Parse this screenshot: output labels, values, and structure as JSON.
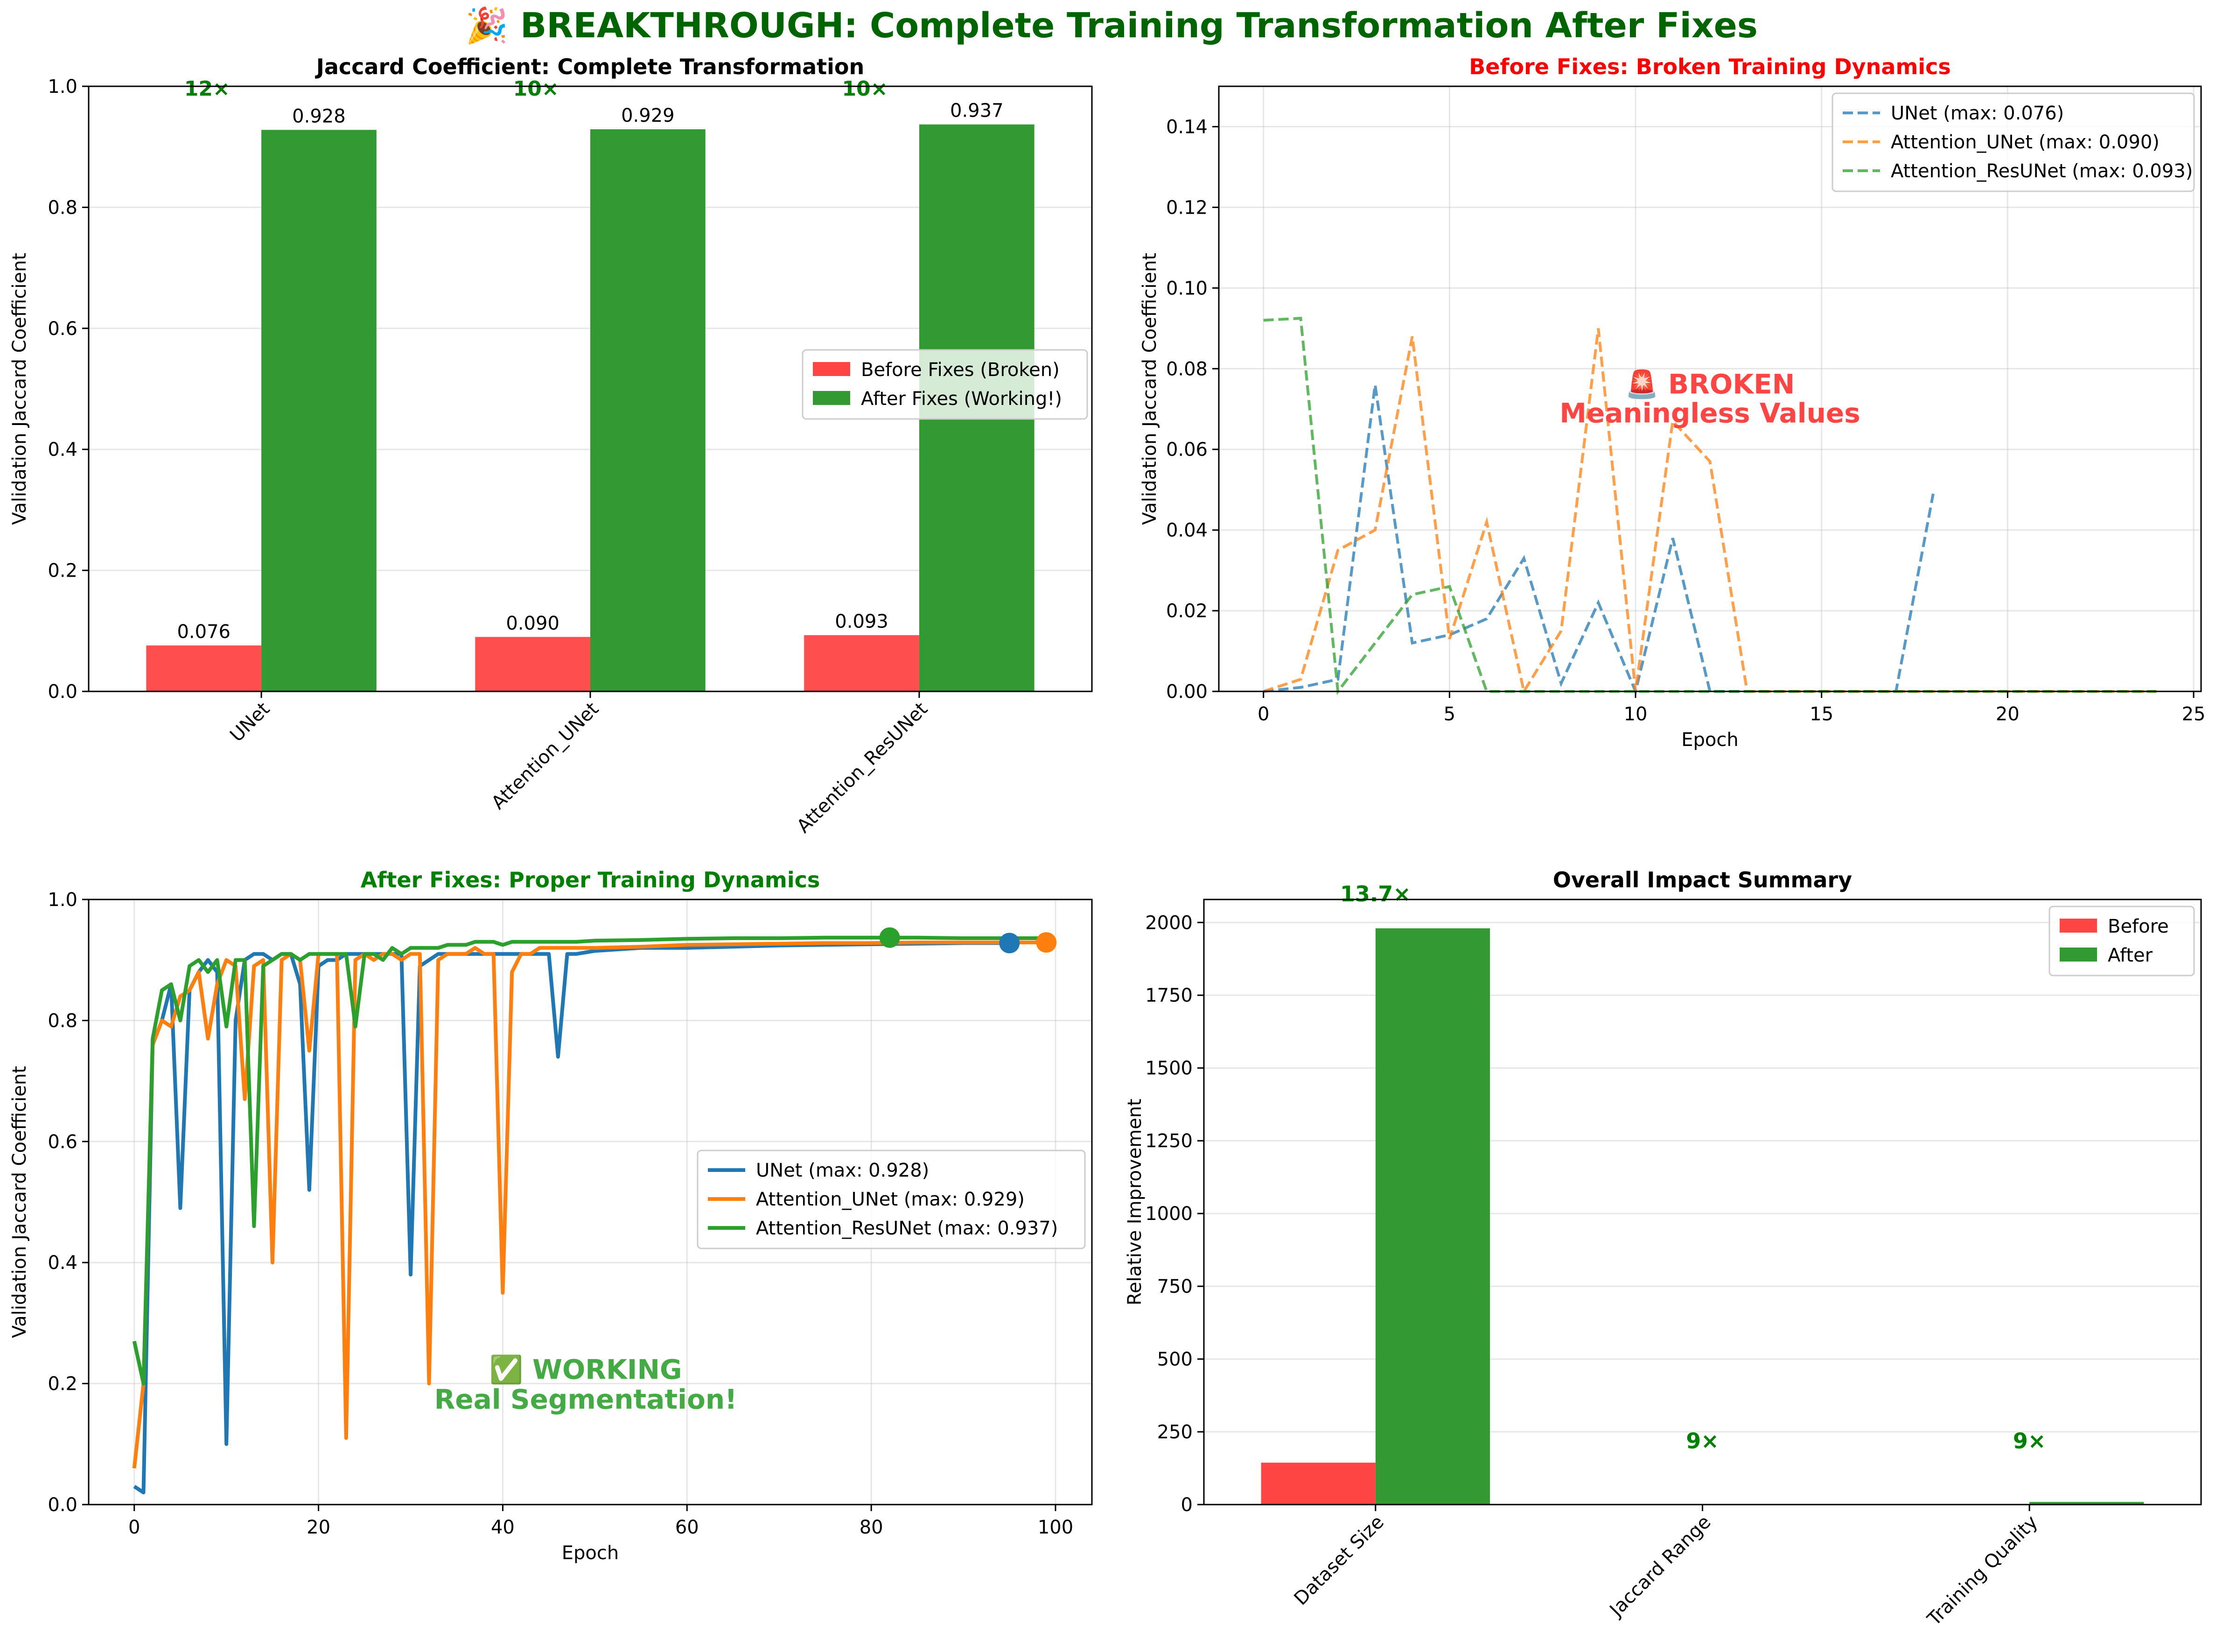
{
  "suptitle": "🎉 BREAKTHROUGH: Complete Training Transformation After Fixes",
  "colors": {
    "before": "#ff4444",
    "after": "#339933",
    "unet": "#1f77b4",
    "att_unet": "#ff7f0e",
    "att_resunet": "#2ca02c",
    "title_green": "#008000",
    "title_red": "#ff0000",
    "broken_text": "#ff4444",
    "working_text": "#44aa44"
  },
  "chart_data": [
    {
      "type": "bar",
      "title": "Jaccard Coefficient: Complete Transformation",
      "xlabel": "",
      "ylabel": "Validation Jaccard Coefficient",
      "ylim": [
        0,
        1.0
      ],
      "yticks": [
        "0.0",
        "0.2",
        "0.4",
        "0.6",
        "0.8",
        "1.0"
      ],
      "categories": [
        "UNet",
        "Attention_UNet",
        "Attention_ResUNet"
      ],
      "series": [
        {
          "name": "Before Fixes (Broken)",
          "values": [
            0.076,
            0.09,
            0.093
          ],
          "labels": [
            "0.076",
            "0.090",
            "0.093"
          ]
        },
        {
          "name": "After Fixes (Working!)",
          "values": [
            0.928,
            0.929,
            0.937
          ],
          "labels": [
            "0.928",
            "0.929",
            "0.937"
          ]
        }
      ],
      "ratio_labels": [
        "12×",
        "10×",
        "10×"
      ],
      "legend": "center-right",
      "grid": true
    },
    {
      "type": "line",
      "title": "Before Fixes: Broken Training Dynamics",
      "xlabel": "Epoch",
      "ylabel": "Validation Jaccard Coefficient",
      "xlim": [
        -1.2,
        25.2
      ],
      "ylim": [
        0,
        0.15
      ],
      "xticks": [
        "0",
        "5",
        "10",
        "15",
        "20",
        "25"
      ],
      "yticks": [
        "0.00",
        "0.02",
        "0.04",
        "0.06",
        "0.08",
        "0.10",
        "0.12",
        "0.14"
      ],
      "series": [
        {
          "name": "UNet (max: 0.076)",
          "x": [
            0,
            1,
            2,
            3,
            4,
            5,
            6,
            7,
            8,
            9,
            10,
            11,
            12,
            13,
            14,
            15,
            16,
            17,
            18
          ],
          "y": [
            0.0,
            0.001,
            0.003,
            0.076,
            0.012,
            0.014,
            0.018,
            0.033,
            0.002,
            0.022,
            0.0,
            0.038,
            0.0,
            0.0,
            0.0,
            0.0,
            0.0,
            0.0,
            0.049
          ]
        },
        {
          "name": "Attention_UNet (max: 0.090)",
          "x": [
            0,
            1,
            2,
            3,
            4,
            5,
            6,
            7,
            8,
            9,
            10,
            11,
            12,
            13,
            14,
            15,
            16,
            17,
            18,
            19,
            20,
            21,
            22,
            23,
            24
          ],
          "y": [
            0.0,
            0.003,
            0.035,
            0.04,
            0.088,
            0.013,
            0.042,
            0.0,
            0.015,
            0.09,
            0.0,
            0.067,
            0.057,
            0.0,
            0.0,
            0.0,
            0.0,
            0.0,
            0.0,
            0.0,
            0.0,
            0.0,
            0.0,
            0.0,
            0.0
          ]
        },
        {
          "name": "Attention_ResUNet (max: 0.093)",
          "x": [
            0,
            1,
            2,
            3,
            4,
            5,
            6,
            7,
            8,
            9,
            10,
            11,
            12,
            13,
            14,
            15,
            16,
            17,
            18,
            19,
            20,
            21,
            22,
            23,
            24
          ],
          "y": [
            0.092,
            0.0925,
            0.0,
            0.012,
            0.024,
            0.026,
            0.0,
            0.0,
            0.0,
            0.0,
            0.0,
            0.0,
            0.0,
            0.0,
            0.0,
            0.0,
            0.0,
            0.0,
            0.0,
            0.0,
            0.0,
            0.0,
            0.0,
            0.0,
            0.0
          ]
        }
      ],
      "annotation": {
        "text": [
          "🚨 BROKEN",
          "Meaningless Values"
        ],
        "x": 12,
        "y": 0.075
      },
      "legend": "top-right",
      "grid": true
    },
    {
      "type": "line",
      "title": "After Fixes: Proper Training Dynamics",
      "xlabel": "Epoch",
      "ylabel": "Validation Jaccard Coefficient",
      "xlim": [
        -4.95,
        103.95
      ],
      "ylim": [
        0,
        1.0
      ],
      "xticks": [
        "0",
        "20",
        "40",
        "60",
        "80",
        "100"
      ],
      "yticks": [
        "0.0",
        "0.2",
        "0.4",
        "0.6",
        "0.8",
        "1.0"
      ],
      "series": [
        {
          "name": "UNet (max: 0.928)",
          "x": [
            0,
            1,
            2,
            3,
            4,
            5,
            6,
            7,
            8,
            9,
            10,
            11,
            12,
            13,
            14,
            15,
            16,
            17,
            18,
            19,
            20,
            21,
            22,
            23,
            24,
            25,
            26,
            27,
            28,
            29,
            30,
            31,
            32,
            33,
            34,
            35,
            36,
            37,
            38,
            39,
            40,
            41,
            42,
            43,
            44,
            45,
            46,
            47,
            48,
            50,
            55,
            60,
            65,
            70,
            75,
            80,
            85,
            90,
            95
          ],
          "y": [
            0.03,
            0.02,
            0.76,
            0.8,
            0.86,
            0.49,
            0.85,
            0.88,
            0.9,
            0.88,
            0.1,
            0.8,
            0.9,
            0.91,
            0.91,
            0.9,
            0.91,
            0.91,
            0.86,
            0.52,
            0.89,
            0.9,
            0.9,
            0.91,
            0.91,
            0.91,
            0.91,
            0.91,
            0.91,
            0.91,
            0.38,
            0.89,
            0.9,
            0.91,
            0.91,
            0.91,
            0.91,
            0.91,
            0.91,
            0.91,
            0.91,
            0.91,
            0.91,
            0.91,
            0.91,
            0.91,
            0.74,
            0.91,
            0.91,
            0.915,
            0.92,
            0.92,
            0.922,
            0.924,
            0.925,
            0.926,
            0.927,
            0.928,
            0.928
          ],
          "marker": {
            "x": 95,
            "y": 0.928
          }
        },
        {
          "name": "Attention_UNet (max: 0.929)",
          "x": [
            0,
            1,
            2,
            3,
            4,
            5,
            6,
            7,
            8,
            9,
            10,
            11,
            12,
            13,
            14,
            15,
            16,
            17,
            18,
            19,
            20,
            21,
            22,
            23,
            24,
            25,
            26,
            27,
            28,
            29,
            30,
            31,
            32,
            33,
            34,
            35,
            36,
            37,
            38,
            39,
            40,
            41,
            42,
            43,
            44,
            45,
            46,
            47,
            48,
            50,
            55,
            60,
            65,
            70,
            75,
            80,
            85,
            90,
            95,
            99
          ],
          "y": [
            0.06,
            0.2,
            0.76,
            0.8,
            0.79,
            0.84,
            0.85,
            0.88,
            0.77,
            0.86,
            0.9,
            0.89,
            0.67,
            0.89,
            0.9,
            0.4,
            0.9,
            0.91,
            0.9,
            0.75,
            0.91,
            0.91,
            0.91,
            0.11,
            0.9,
            0.91,
            0.9,
            0.91,
            0.91,
            0.9,
            0.91,
            0.91,
            0.2,
            0.9,
            0.91,
            0.91,
            0.91,
            0.92,
            0.91,
            0.91,
            0.35,
            0.88,
            0.91,
            0.91,
            0.92,
            0.92,
            0.92,
            0.92,
            0.92,
            0.92,
            0.922,
            0.925,
            0.926,
            0.927,
            0.928,
            0.928,
            0.929,
            0.929,
            0.929,
            0.929
          ],
          "marker": {
            "x": 99,
            "y": 0.929
          }
        },
        {
          "name": "Attention_ResUNet (max: 0.937)",
          "x": [
            0,
            1,
            2,
            3,
            4,
            5,
            6,
            7,
            8,
            9,
            10,
            11,
            12,
            13,
            14,
            15,
            16,
            17,
            18,
            19,
            20,
            21,
            22,
            23,
            24,
            25,
            26,
            27,
            28,
            29,
            30,
            31,
            32,
            33,
            34,
            35,
            36,
            37,
            38,
            39,
            40,
            41,
            42,
            43,
            44,
            45,
            46,
            47,
            48,
            50,
            55,
            60,
            65,
            70,
            75,
            80,
            82,
            85,
            90,
            95,
            99
          ],
          "y": [
            0.27,
            0.2,
            0.77,
            0.85,
            0.86,
            0.8,
            0.89,
            0.9,
            0.88,
            0.9,
            0.79,
            0.9,
            0.9,
            0.46,
            0.89,
            0.9,
            0.91,
            0.91,
            0.9,
            0.91,
            0.91,
            0.91,
            0.91,
            0.91,
            0.79,
            0.91,
            0.91,
            0.9,
            0.92,
            0.91,
            0.92,
            0.92,
            0.92,
            0.92,
            0.925,
            0.925,
            0.925,
            0.93,
            0.93,
            0.93,
            0.925,
            0.93,
            0.93,
            0.93,
            0.93,
            0.93,
            0.93,
            0.93,
            0.93,
            0.932,
            0.933,
            0.935,
            0.936,
            0.936,
            0.937,
            0.937,
            0.937,
            0.937,
            0.936,
            0.936,
            0.936
          ],
          "marker": {
            "x": 82,
            "y": 0.937
          }
        }
      ],
      "annotation": {
        "text": [
          "✅ WORKING",
          "Real Segmentation!"
        ],
        "x": 49,
        "y": 0.2
      },
      "legend": "center-right",
      "grid": true
    },
    {
      "type": "bar",
      "title": "Overall Impact Summary",
      "xlabel": "",
      "ylabel": "Relative Improvement",
      "ylim": [
        0,
        2079
      ],
      "yticks": [
        "0",
        "250",
        "500",
        "750",
        "1000",
        "1250",
        "1500",
        "1750",
        "2000"
      ],
      "categories": [
        "Dataset Size",
        "Jaccard Range",
        "Training Quality"
      ],
      "series": [
        {
          "name": "Before",
          "values": [
            144,
            0.1,
            1
          ]
        },
        {
          "name": "After",
          "values": [
            1980,
            0.9,
            9
          ]
        }
      ],
      "ratio_labels": [
        "13.7×",
        "9×",
        "9×"
      ],
      "legend": "top-right",
      "grid": true
    }
  ]
}
